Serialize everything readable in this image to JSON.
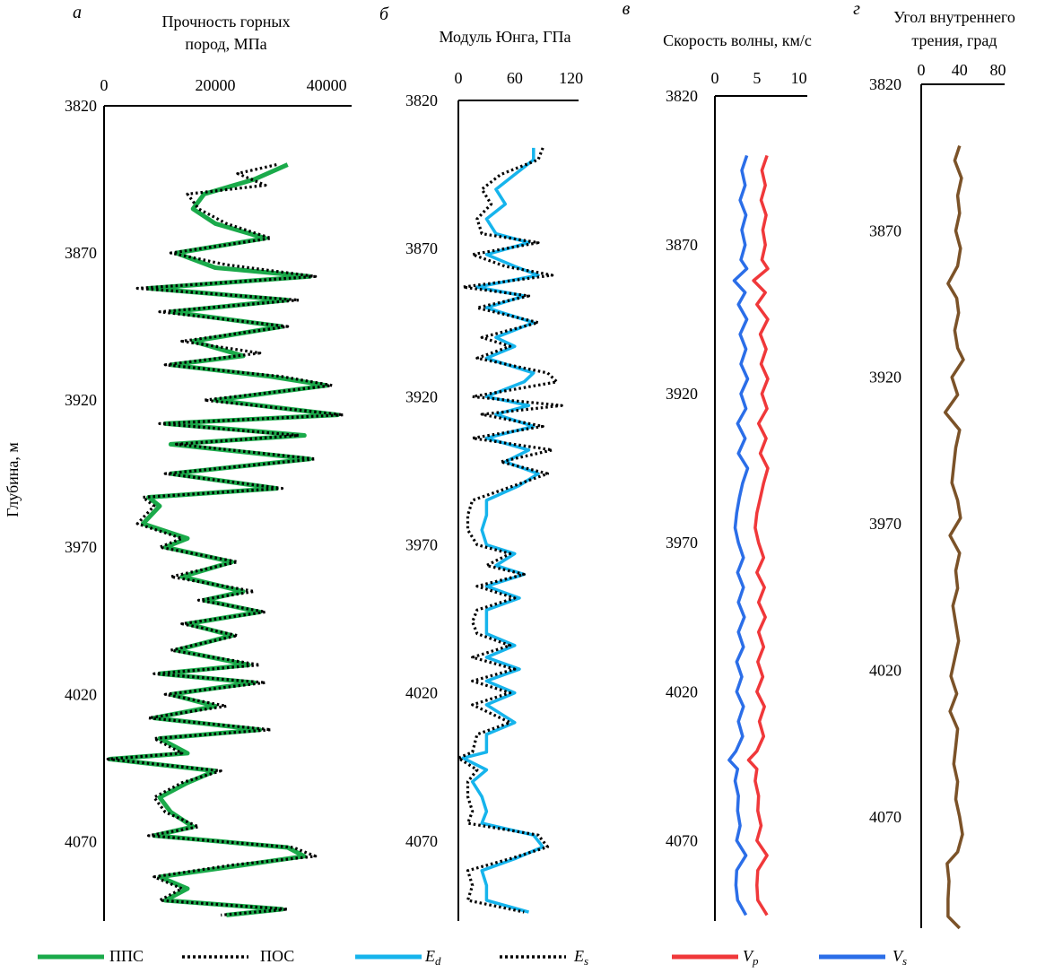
{
  "chart_data": [
    {
      "type": "line",
      "letter": "а",
      "title": "Прочность горных пород, МПа",
      "title_lines": [
        "Прочность горных",
        "пород, МПа"
      ],
      "ylabel": "Глубина, м",
      "xticks": [
        0,
        20000,
        40000
      ],
      "xlim": [
        0,
        44500
      ],
      "yticks": [
        3820,
        3870,
        3920,
        3970,
        4020,
        4070
      ],
      "ylim": [
        3820,
        4097
      ],
      "y_inverted": true,
      "x_axis_position": "top",
      "grid": false,
      "series": [
        {
          "name": "ППС",
          "color": "#1aaa4a",
          "style": "solid",
          "depth": [
            3840,
            3845,
            3850,
            3855,
            3860,
            3865,
            3870,
            3875,
            3878,
            3882,
            3886,
            3890,
            3895,
            3900,
            3905,
            3908,
            3912,
            3915,
            3920,
            3925,
            3928,
            3932,
            3935,
            3940,
            3945,
            3950,
            3953,
            3956,
            3962,
            3967,
            3970,
            3975,
            3980,
            3985,
            3988,
            3992,
            3996,
            4000,
            4005,
            4010,
            4013,
            4016,
            4020,
            4024,
            4028,
            4032,
            4035,
            4040,
            4042,
            4046,
            4050,
            4055,
            4060,
            4065,
            4068,
            4072,
            4075,
            4078,
            4082,
            4086,
            4090,
            4093,
            4095
          ],
          "values": [
            33000,
            27000,
            18000,
            16000,
            20000,
            29000,
            13000,
            20000,
            37000,
            8000,
            33000,
            12000,
            32000,
            16000,
            25000,
            12000,
            30000,
            40000,
            20000,
            42000,
            11000,
            36000,
            12000,
            37000,
            12000,
            31000,
            8000,
            10000,
            7000,
            15000,
            11000,
            23000,
            14000,
            25000,
            18000,
            28000,
            15000,
            23000,
            13000,
            26000,
            10000,
            27000,
            12000,
            20000,
            9000,
            28000,
            10000,
            15000,
            1000,
            20000,
            15000,
            10000,
            12000,
            16000,
            9000,
            33000,
            36000,
            25000,
            10000,
            15000,
            11000,
            32000,
            22000
          ]
        },
        {
          "name": "ПОС",
          "color": "#000000",
          "style": "dotted",
          "depth": [
            3840,
            3843,
            3847,
            3850,
            3855,
            3860,
            3865,
            3870,
            3874,
            3878,
            3882,
            3886,
            3890,
            3895,
            3900,
            3904,
            3908,
            3912,
            3915,
            3920,
            3925,
            3928,
            3932,
            3935,
            3940,
            3945,
            3950,
            3953,
            3956,
            3962,
            3967,
            3970,
            3975,
            3980,
            3985,
            3988,
            3992,
            3996,
            4000,
            4005,
            4010,
            4013,
            4016,
            4020,
            4024,
            4028,
            4032,
            4035,
            4040,
            4042,
            4046,
            4050,
            4055,
            4060,
            4065,
            4068,
            4072,
            4075,
            4078,
            4082,
            4086,
            4090,
            4093,
            4095
          ],
          "values": [
            31000,
            24000,
            29000,
            15000,
            17000,
            22000,
            30000,
            12000,
            22000,
            38000,
            6000,
            35000,
            10000,
            33000,
            14000,
            28000,
            11000,
            32000,
            41000,
            18000,
            43000,
            10000,
            35000,
            13000,
            38000,
            11000,
            32000,
            7000,
            9000,
            6000,
            14000,
            10000,
            24000,
            12000,
            27000,
            17000,
            29000,
            14000,
            24000,
            12000,
            28000,
            9000,
            29000,
            11000,
            22000,
            8000,
            30000,
            9000,
            14000,
            700,
            21000,
            14000,
            9000,
            11000,
            17000,
            8000,
            34000,
            38000,
            23000,
            9000,
            14000,
            10000,
            33000,
            21000
          ]
        }
      ]
    },
    {
      "type": "line",
      "letter": "б",
      "title": "Модуль Юнга, ГПа",
      "title_lines": [
        "Модуль Юнга, ГПа"
      ],
      "xticks": [
        0,
        60,
        120
      ],
      "xlim": [
        0,
        128
      ],
      "yticks": [
        3820,
        3870,
        3920,
        3970,
        4020,
        4070
      ],
      "ylim": [
        3820,
        4097
      ],
      "y_inverted": true,
      "x_axis_position": "top",
      "grid": false,
      "series": [
        {
          "name": "Ed",
          "color": "#16b4ec",
          "style": "solid",
          "depth": [
            3836,
            3840,
            3845,
            3850,
            3855,
            3860,
            3865,
            3868,
            3872,
            3876,
            3879,
            3883,
            3886,
            3890,
            3895,
            3900,
            3903,
            3907,
            3912,
            3915,
            3920,
            3923,
            3926,
            3930,
            3934,
            3938,
            3942,
            3946,
            3950,
            3955,
            3960,
            3965,
            3970,
            3973,
            3977,
            3980,
            3984,
            3988,
            3992,
            3996,
            4000,
            4004,
            4008,
            4012,
            4016,
            4020,
            4024,
            4030,
            4034,
            4040,
            4042,
            4046,
            4050,
            4055,
            4060,
            4064,
            4068,
            4072,
            4076,
            4080,
            4085,
            4090,
            4094
          ],
          "values": [
            80,
            80,
            60,
            40,
            50,
            30,
            40,
            75,
            30,
            60,
            85,
            20,
            70,
            30,
            80,
            40,
            60,
            30,
            80,
            70,
            30,
            75,
            40,
            80,
            30,
            75,
            50,
            85,
            65,
            30,
            30,
            25,
            30,
            60,
            40,
            70,
            30,
            65,
            30,
            30,
            30,
            60,
            30,
            65,
            30,
            60,
            30,
            60,
            30,
            30,
            5,
            30,
            15,
            25,
            30,
            25,
            80,
            90,
            60,
            25,
            30,
            30,
            75
          ]
        },
        {
          "name": "Es",
          "color": "#000000",
          "style": "dotted",
          "depth": [
            3836,
            3840,
            3845,
            3850,
            3855,
            3860,
            3865,
            3868,
            3872,
            3876,
            3879,
            3883,
            3886,
            3890,
            3895,
            3900,
            3903,
            3907,
            3912,
            3915,
            3920,
            3923,
            3926,
            3930,
            3934,
            3938,
            3942,
            3946,
            3950,
            3955,
            3960,
            3965,
            3970,
            3973,
            3977,
            3980,
            3984,
            3988,
            3992,
            3996,
            4000,
            4004,
            4008,
            4012,
            4016,
            4020,
            4024,
            4030,
            4034,
            4040,
            4042,
            4046,
            4050,
            4055,
            4060,
            4064,
            4068,
            4072,
            4076,
            4080,
            4085,
            4090,
            4094
          ],
          "values": [
            90,
            85,
            45,
            25,
            35,
            20,
            25,
            85,
            15,
            50,
            100,
            5,
            75,
            20,
            85,
            25,
            55,
            20,
            95,
            105,
            15,
            110,
            25,
            90,
            15,
            100,
            45,
            95,
            60,
            15,
            10,
            10,
            20,
            55,
            30,
            70,
            20,
            60,
            20,
            15,
            20,
            55,
            15,
            60,
            15,
            55,
            15,
            55,
            20,
            15,
            0,
            20,
            10,
            10,
            15,
            10,
            85,
            95,
            55,
            10,
            15,
            10,
            70
          ]
        }
      ]
    },
    {
      "type": "line",
      "letter": "в",
      "title": "Скорость волны, км/с",
      "title_lines": [
        "Скорость волны, км/с"
      ],
      "xticks": [
        0,
        5,
        10
      ],
      "xlim": [
        0,
        11
      ],
      "yticks": [
        3820,
        3870,
        3920,
        3970,
        4020,
        4070
      ],
      "ylim": [
        3820,
        4097
      ],
      "y_inverted": true,
      "x_axis_position": "top",
      "grid": false,
      "series": [
        {
          "name": "Vp",
          "color": "#f0383a",
          "style": "solid",
          "depth": [
            3840,
            3845,
            3850,
            3855,
            3860,
            3865,
            3870,
            3875,
            3878,
            3882,
            3886,
            3890,
            3895,
            3900,
            3905,
            3910,
            3915,
            3920,
            3925,
            3930,
            3935,
            3940,
            3945,
            3950,
            3955,
            3960,
            3965,
            3970,
            3975,
            3980,
            3985,
            3990,
            3995,
            4000,
            4005,
            4010,
            4015,
            4020,
            4025,
            4030,
            4035,
            4040,
            4043,
            4046,
            4050,
            4055,
            4060,
            4065,
            4070,
            4075,
            4080,
            4085,
            4090,
            4095
          ],
          "values": [
            6.2,
            5.6,
            6.0,
            5.5,
            6.1,
            5.7,
            6.0,
            5.6,
            6.3,
            4.6,
            6.0,
            5.0,
            6.3,
            5.4,
            6.1,
            5.5,
            6.3,
            5.6,
            6.2,
            5.2,
            6.1,
            5.4,
            6.3,
            5.8,
            5.4,
            5.0,
            4.8,
            5.2,
            5.8,
            5.0,
            5.9,
            5.2,
            6.0,
            5.2,
            5.8,
            5.1,
            5.7,
            5.0,
            5.9,
            5.3,
            5.8,
            5.0,
            4.0,
            5.0,
            4.8,
            5.2,
            5.1,
            5.5,
            5.0,
            6.2,
            5.1,
            5.0,
            5.1,
            6.2
          ]
        },
        {
          "name": "Vs",
          "color": "#2b6ee8",
          "style": "solid",
          "depth": [
            3840,
            3845,
            3850,
            3855,
            3860,
            3865,
            3870,
            3875,
            3878,
            3882,
            3886,
            3890,
            3895,
            3900,
            3905,
            3910,
            3915,
            3920,
            3925,
            3930,
            3935,
            3940,
            3945,
            3950,
            3955,
            3960,
            3965,
            3970,
            3975,
            3980,
            3985,
            3990,
            3995,
            4000,
            4005,
            4010,
            4015,
            4020,
            4025,
            4030,
            4035,
            4040,
            4043,
            4046,
            4050,
            4055,
            4060,
            4065,
            4070,
            4075,
            4080,
            4085,
            4090,
            4095
          ],
          "values": [
            3.8,
            3.2,
            3.6,
            3.0,
            3.7,
            3.2,
            3.6,
            3.1,
            3.8,
            2.3,
            3.6,
            2.8,
            3.8,
            3.0,
            3.7,
            3.1,
            3.9,
            3.1,
            3.7,
            2.7,
            3.6,
            2.8,
            3.9,
            3.3,
            2.9,
            2.6,
            2.4,
            2.8,
            3.4,
            2.7,
            3.4,
            2.8,
            3.5,
            2.8,
            3.4,
            2.6,
            3.2,
            2.6,
            3.4,
            2.8,
            3.3,
            2.5,
            1.7,
            2.7,
            2.4,
            2.8,
            2.7,
            3.0,
            2.6,
            3.7,
            2.6,
            2.5,
            2.7,
            3.7
          ]
        }
      ]
    },
    {
      "type": "line",
      "letter": "г",
      "title": "Угол внутреннего трения, град",
      "title_lines": [
        "Угол внутреннего",
        "трения, град"
      ],
      "xticks": [
        0,
        40,
        80
      ],
      "xlim": [
        0,
        87
      ],
      "yticks": [
        3820,
        3870,
        3920,
        3970,
        4020,
        4070
      ],
      "ylim": [
        3820,
        4108
      ],
      "y_inverted": true,
      "x_axis_position": "top",
      "grid": false,
      "series": [
        {
          "name": "",
          "color": "#7b5228",
          "style": "solid",
          "depth": [
            3841,
            3846,
            3852,
            3858,
            3864,
            3870,
            3876,
            3882,
            3888,
            3893,
            3898,
            3904,
            3910,
            3914,
            3920,
            3926,
            3932,
            3938,
            3944,
            3950,
            3956,
            3962,
            3968,
            3974,
            3980,
            3986,
            3992,
            3998,
            4004,
            4010,
            4016,
            4022,
            4028,
            4034,
            4040,
            4046,
            4052,
            4058,
            4064,
            4070,
            4076,
            4082,
            4086,
            4092,
            4098,
            4104,
            4108
          ],
          "values": [
            40,
            35,
            42,
            38,
            40,
            36,
            41,
            38,
            28,
            37,
            39,
            35,
            38,
            44,
            32,
            38,
            25,
            40,
            36,
            34,
            32,
            38,
            41,
            30,
            40,
            36,
            38,
            33,
            36,
            39,
            35,
            31,
            37,
            30,
            38,
            36,
            34,
            38,
            36,
            40,
            43,
            38,
            27,
            29,
            28,
            28,
            40
          ]
        }
      ]
    }
  ],
  "legend": [
    {
      "label": "ППС",
      "color": "#1aaa4a",
      "style": "solid"
    },
    {
      "label": "ПОС",
      "color": "#000000",
      "style": "dotted"
    },
    {
      "label": "E",
      "sub": "d",
      "color": "#16b4ec",
      "style": "solid"
    },
    {
      "label": "E",
      "sub": "s",
      "color": "#000000",
      "style": "dotted"
    },
    {
      "label": "V",
      "sub": "p",
      "color": "#f0383a",
      "style": "solid"
    },
    {
      "label": "V",
      "sub": "s",
      "color": "#2b6ee8",
      "style": "solid"
    }
  ]
}
